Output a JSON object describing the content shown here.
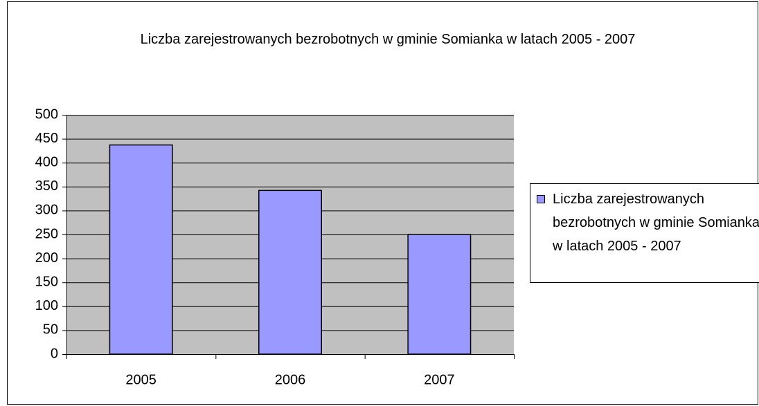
{
  "chart_data": {
    "type": "bar",
    "title": "Liczba zarejestrowanych bezrobotnych w gminie Somianka w latach 2005 - 2007",
    "categories": [
      "2005",
      "2006",
      "2007"
    ],
    "series": [
      {
        "name": "Liczba zarejestrowanych bezrobotnych w gminie Somianka w latach 2005 - 2007",
        "color": "#9999ff",
        "values": [
          437,
          342,
          250
        ]
      }
    ],
    "ylim": [
      0,
      500
    ],
    "yticks": [
      0,
      50,
      100,
      150,
      200,
      250,
      300,
      350,
      400,
      450,
      500
    ],
    "grid": true,
    "legend": "right"
  }
}
